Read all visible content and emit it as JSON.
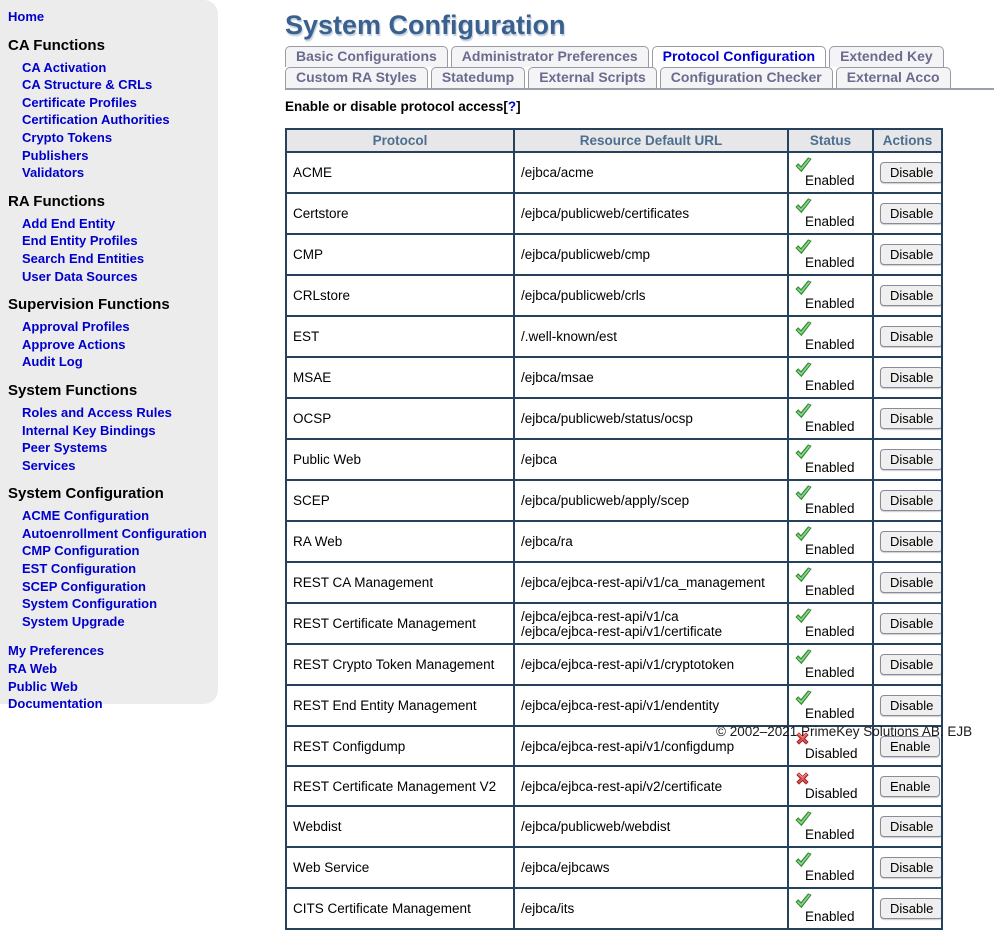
{
  "colors": {
    "link_blue": "#0000cc",
    "title_blue": "#3a618d",
    "table_border": "#25415c",
    "table_header_text": "#4c6e8f",
    "tab_inactive_text": "#6b6b8f",
    "enabled_green": "#4bae4b",
    "disabled_red": "#e05252",
    "sidebar_bg": "#ececec"
  },
  "sidebar": {
    "sections": [
      {
        "header": null,
        "items": [
          "Home"
        ]
      },
      {
        "header": "CA Functions",
        "items": [
          "CA Activation",
          "CA Structure & CRLs",
          "Certificate Profiles",
          "Certification Authorities",
          "Crypto Tokens",
          "Publishers",
          "Validators"
        ]
      },
      {
        "header": "RA Functions",
        "items": [
          "Add End Entity",
          "End Entity Profiles",
          "Search End Entities",
          "User Data Sources"
        ]
      },
      {
        "header": "Supervision Functions",
        "items": [
          "Approval Profiles",
          "Approve Actions",
          "Audit Log"
        ]
      },
      {
        "header": "System Functions",
        "items": [
          "Roles and Access Rules",
          "Internal Key Bindings",
          "Peer Systems",
          "Services"
        ]
      },
      {
        "header": "System Configuration",
        "items": [
          "ACME Configuration",
          "Autoenrollment Configuration",
          "CMP Configuration",
          "EST Configuration",
          "SCEP Configuration",
          "System Configuration",
          "System Upgrade"
        ]
      },
      {
        "header": null,
        "items": [
          "My Preferences",
          "RA Web",
          "Public Web",
          "Documentation"
        ]
      }
    ]
  },
  "header": {
    "title": "System Configuration"
  },
  "tabs": {
    "rows": [
      [
        {
          "label": "Basic Configurations",
          "active": false
        },
        {
          "label": "Administrator Preferences",
          "active": false
        },
        {
          "label": "Protocol Configuration",
          "active": true
        },
        {
          "label": "Extended Key",
          "active": false
        }
      ],
      [
        {
          "label": "Custom RA Styles",
          "active": false
        },
        {
          "label": "Statedump",
          "active": false
        },
        {
          "label": "External Scripts",
          "active": false
        },
        {
          "label": "Configuration Checker",
          "active": false
        },
        {
          "label": "External Acco",
          "active": false
        }
      ]
    ]
  },
  "content": {
    "section_heading": "Enable or disable protocol access",
    "bracket_open": "[",
    "help_link": "?",
    "bracket_close": "]"
  },
  "table": {
    "columns": [
      "Protocol",
      "Resource Default URL",
      "Status",
      "Actions"
    ],
    "rows": [
      {
        "protocol": "ACME",
        "urls": [
          "/ejbca/acme"
        ],
        "status": "Enabled",
        "enabled": true,
        "action": "Disable"
      },
      {
        "protocol": "Certstore",
        "urls": [
          "/ejbca/publicweb/certificates"
        ],
        "status": "Enabled",
        "enabled": true,
        "action": "Disable"
      },
      {
        "protocol": "CMP",
        "urls": [
          "/ejbca/publicweb/cmp"
        ],
        "status": "Enabled",
        "enabled": true,
        "action": "Disable"
      },
      {
        "protocol": "CRLstore",
        "urls": [
          "/ejbca/publicweb/crls"
        ],
        "status": "Enabled",
        "enabled": true,
        "action": "Disable"
      },
      {
        "protocol": "EST",
        "urls": [
          "/.well-known/est"
        ],
        "status": "Enabled",
        "enabled": true,
        "action": "Disable"
      },
      {
        "protocol": "MSAE",
        "urls": [
          "/ejbca/msae"
        ],
        "status": "Enabled",
        "enabled": true,
        "action": "Disable"
      },
      {
        "protocol": "OCSP",
        "urls": [
          "/ejbca/publicweb/status/ocsp"
        ],
        "status": "Enabled",
        "enabled": true,
        "action": "Disable"
      },
      {
        "protocol": "Public Web",
        "urls": [
          "/ejbca"
        ],
        "status": "Enabled",
        "enabled": true,
        "action": "Disable"
      },
      {
        "protocol": "SCEP",
        "urls": [
          "/ejbca/publicweb/apply/scep"
        ],
        "status": "Enabled",
        "enabled": true,
        "action": "Disable"
      },
      {
        "protocol": "RA Web",
        "urls": [
          "/ejbca/ra"
        ],
        "status": "Enabled",
        "enabled": true,
        "action": "Disable"
      },
      {
        "protocol": "REST CA Management",
        "urls": [
          "/ejbca/ejbca-rest-api/v1/ca_management"
        ],
        "status": "Enabled",
        "enabled": true,
        "action": "Disable"
      },
      {
        "protocol": "REST Certificate Management",
        "urls": [
          "/ejbca/ejbca-rest-api/v1/ca",
          "/ejbca/ejbca-rest-api/v1/certificate"
        ],
        "status": "Enabled",
        "enabled": true,
        "action": "Disable"
      },
      {
        "protocol": "REST Crypto Token Management",
        "urls": [
          "/ejbca/ejbca-rest-api/v1/cryptotoken"
        ],
        "status": "Enabled",
        "enabled": true,
        "action": "Disable"
      },
      {
        "protocol": "REST End Entity Management",
        "urls": [
          "/ejbca/ejbca-rest-api/v1/endentity"
        ],
        "status": "Enabled",
        "enabled": true,
        "action": "Disable"
      },
      {
        "protocol": "REST Configdump",
        "urls": [
          "/ejbca/ejbca-rest-api/v1/configdump"
        ],
        "status": "Disabled",
        "enabled": false,
        "action": "Enable"
      },
      {
        "protocol": "REST Certificate Management V2",
        "urls": [
          "/ejbca/ejbca-rest-api/v2/certificate"
        ],
        "status": "Disabled",
        "enabled": false,
        "action": "Enable"
      },
      {
        "protocol": "Webdist",
        "urls": [
          "/ejbca/publicweb/webdist"
        ],
        "status": "Enabled",
        "enabled": true,
        "action": "Disable"
      },
      {
        "protocol": "Web Service",
        "urls": [
          "/ejbca/ejbcaws"
        ],
        "status": "Enabled",
        "enabled": true,
        "action": "Disable"
      },
      {
        "protocol": "CITS Certificate Management",
        "urls": [
          "/ejbca/its"
        ],
        "status": "Enabled",
        "enabled": true,
        "action": "Disable"
      }
    ]
  },
  "footer": {
    "copyright": "© 2002–2021 PrimeKey Solutions AB. EJB"
  }
}
